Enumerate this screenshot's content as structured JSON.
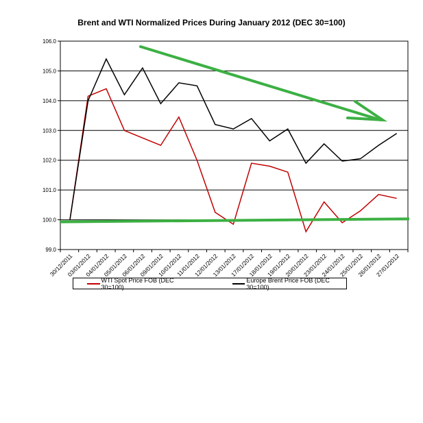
{
  "chart_data": {
    "type": "line",
    "title": "Brent and WTI Normalized Prices  During January 2012  (DEC 30=100)",
    "xlabel": "",
    "ylabel": "",
    "ylim": [
      99,
      106
    ],
    "yticks": [
      "99.0",
      "100.0",
      "101.0",
      "102.0",
      "103.0",
      "104.0",
      "105.0",
      "106.0"
    ],
    "categories": [
      "30/12/2011",
      "03/01/2012",
      "04/01/2012",
      "05/01/2012",
      "06/01/2012",
      "09/01/2012",
      "10/01/2012",
      "11/01/2012",
      "12/01/2012",
      "13/01/2012",
      "17/01/2012",
      "18/01/2012",
      "19/01/2012",
      "20/01/2012",
      "23/01/2012",
      "24/01/2012",
      "25/01/2012",
      "26/01/2012",
      "27/01/2012"
    ],
    "series": [
      {
        "name": "WTI Spot Price FOB (DEC 30=100)",
        "color": "#c00000",
        "values": [
          100,
          104.15,
          104.4,
          103.0,
          102.75,
          102.5,
          103.45,
          102.0,
          100.25,
          99.85,
          101.9,
          101.8,
          101.6,
          99.6,
          100.6,
          99.9,
          100.3,
          100.85,
          100.72
        ]
      },
      {
        "name": "Europe Brent Price FOB  (DEC 30=100)",
        "color": "#000000",
        "values": [
          100,
          104.0,
          105.4,
          104.2,
          105.1,
          103.9,
          104.6,
          104.5,
          103.2,
          103.05,
          103.4,
          102.65,
          103.05,
          101.9,
          102.55,
          101.97,
          102.05,
          102.5,
          102.9
        ]
      }
    ],
    "grid": true,
    "legend": "bottom",
    "annotations": [
      {
        "type": "arrow",
        "color": "#3cb043",
        "meaning": "downtrend"
      },
      {
        "type": "hline",
        "color": "#3cb043",
        "value": 100
      }
    ]
  }
}
